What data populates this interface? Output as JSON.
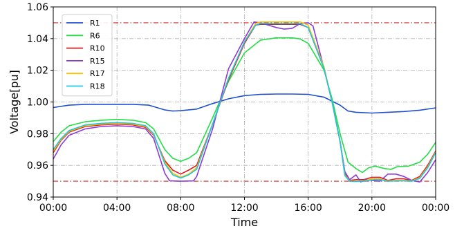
{
  "chart_data": {
    "type": "line",
    "xlabel": "Time",
    "ylabel": "Voltage[pu]",
    "x_ticks": [
      "00:00",
      "04:00",
      "08:00",
      "12:00",
      "16:00",
      "20:00",
      "00:00"
    ],
    "x_tick_hours": [
      0,
      4,
      8,
      12,
      16,
      20,
      24
    ],
    "xlim": [
      0,
      24
    ],
    "y_ticks": [
      "0.94",
      "0.96",
      "0.98",
      "1.00",
      "1.02",
      "1.04",
      "1.06"
    ],
    "ylim": [
      0.94,
      1.06
    ],
    "grid": true,
    "legend_position": "top-left",
    "limit_lines": [
      {
        "value": 1.05,
        "color": "#d62728"
      },
      {
        "value": 0.95,
        "color": "#d62728"
      }
    ],
    "series": [
      {
        "name": "R1",
        "color": "#1f4fd1",
        "points": [
          [
            0,
            0.9965
          ],
          [
            1,
            0.998
          ],
          [
            2,
            0.9985
          ],
          [
            3,
            0.9985
          ],
          [
            4,
            0.9985
          ],
          [
            5,
            0.9985
          ],
          [
            6,
            0.998
          ],
          [
            7,
            0.995
          ],
          [
            7.5,
            0.9943
          ],
          [
            8,
            0.9945
          ],
          [
            9,
            0.9955
          ],
          [
            10,
            0.999
          ],
          [
            11,
            1.002
          ],
          [
            12,
            1.004
          ],
          [
            13,
            1.0048
          ],
          [
            14,
            1.005
          ],
          [
            15,
            1.005
          ],
          [
            16,
            1.0048
          ],
          [
            17,
            1.003
          ],
          [
            18,
            0.998
          ],
          [
            18.5,
            0.9943
          ],
          [
            19,
            0.9935
          ],
          [
            20,
            0.993
          ],
          [
            21,
            0.9935
          ],
          [
            22,
            0.994
          ],
          [
            23,
            0.9948
          ],
          [
            24,
            0.9963
          ]
        ]
      },
      {
        "name": "R6",
        "color": "#22dd44",
        "points": [
          [
            0,
            0.975
          ],
          [
            0.5,
            0.981
          ],
          [
            1,
            0.985
          ],
          [
            2,
            0.9875
          ],
          [
            3,
            0.9885
          ],
          [
            4,
            0.989
          ],
          [
            5,
            0.9885
          ],
          [
            5.8,
            0.987
          ],
          [
            6.3,
            0.983
          ],
          [
            7,
            0.97
          ],
          [
            7.5,
            0.9645
          ],
          [
            8,
            0.9625
          ],
          [
            8.5,
            0.9645
          ],
          [
            9,
            0.968
          ],
          [
            10,
            0.99
          ],
          [
            11,
            1.013
          ],
          [
            12,
            1.031
          ],
          [
            13,
            1.039
          ],
          [
            14,
            1.0405
          ],
          [
            15,
            1.0405
          ],
          [
            15.5,
            1.0398
          ],
          [
            16,
            1.037
          ],
          [
            17,
            1.02
          ],
          [
            17.5,
            1.002
          ],
          [
            18,
            0.98
          ],
          [
            18.5,
            0.962
          ],
          [
            19,
            0.958
          ],
          [
            19.4,
            0.9555
          ],
          [
            19.8,
            0.9585
          ],
          [
            20.2,
            0.9595
          ],
          [
            20.8,
            0.958
          ],
          [
            21.2,
            0.9575
          ],
          [
            21.6,
            0.9592
          ],
          [
            22.3,
            0.9595
          ],
          [
            23,
            0.962
          ],
          [
            23.5,
            0.967
          ],
          [
            24,
            0.9745
          ]
        ]
      },
      {
        "name": "R10",
        "color": "#e31a1c",
        "points": [
          [
            0,
            0.968
          ],
          [
            0.5,
            0.976
          ],
          [
            1,
            0.981
          ],
          [
            2,
            0.9845
          ],
          [
            3,
            0.9855
          ],
          [
            4,
            0.986
          ],
          [
            5,
            0.9855
          ],
          [
            5.8,
            0.984
          ],
          [
            6.3,
            0.979
          ],
          [
            7,
            0.963
          ],
          [
            7.5,
            0.957
          ],
          [
            8,
            0.9545
          ],
          [
            8.5,
            0.957
          ],
          [
            9,
            0.96
          ],
          [
            10,
            0.986
          ],
          [
            11,
            1.014
          ],
          [
            12,
            1.037
          ],
          [
            12.7,
            1.0485
          ],
          [
            13,
            1.049
          ],
          [
            14,
            1.049
          ],
          [
            15,
            1.049
          ],
          [
            15.5,
            1.049
          ],
          [
            16,
            1.047
          ],
          [
            17,
            1.021
          ],
          [
            17.5,
            1.0
          ],
          [
            18,
            0.975
          ],
          [
            18.3,
            0.955
          ],
          [
            18.6,
            0.9505
          ],
          [
            19,
            0.951
          ],
          [
            19.5,
            0.951
          ],
          [
            20,
            0.9525
          ],
          [
            20.5,
            0.9525
          ],
          [
            21,
            0.9505
          ],
          [
            21.5,
            0.9515
          ],
          [
            22,
            0.9515
          ],
          [
            22.5,
            0.9505
          ],
          [
            23,
            0.953
          ],
          [
            23.5,
            0.96
          ],
          [
            24,
            0.969
          ]
        ]
      },
      {
        "name": "R15",
        "color": "#8b3ad6",
        "points": [
          [
            0,
            0.964
          ],
          [
            0.5,
            0.973
          ],
          [
            1,
            0.979
          ],
          [
            2,
            0.983
          ],
          [
            3,
            0.9845
          ],
          [
            4,
            0.985
          ],
          [
            5,
            0.9845
          ],
          [
            5.8,
            0.983
          ],
          [
            6.3,
            0.977
          ],
          [
            7,
            0.955
          ],
          [
            7.3,
            0.9503
          ],
          [
            8,
            0.95
          ],
          [
            8.8,
            0.9502
          ],
          [
            9,
            0.953
          ],
          [
            10,
            0.983
          ],
          [
            11,
            1.021
          ],
          [
            12,
            1.04
          ],
          [
            12.6,
            1.0505
          ],
          [
            13,
            1.05
          ],
          [
            13.5,
            1.0485
          ],
          [
            14,
            1.047
          ],
          [
            14.5,
            1.046
          ],
          [
            15,
            1.0465
          ],
          [
            15.5,
            1.0495
          ],
          [
            16,
            1.05
          ],
          [
            16.3,
            1.048
          ],
          [
            17,
            1.021
          ],
          [
            17.5,
            1.0
          ],
          [
            18,
            0.975
          ],
          [
            18.3,
            0.956
          ],
          [
            18.6,
            0.951
          ],
          [
            19,
            0.954
          ],
          [
            19.3,
            0.9495
          ],
          [
            19.6,
            0.951
          ],
          [
            20,
            0.9505
          ],
          [
            20.5,
            0.95
          ],
          [
            21,
            0.9545
          ],
          [
            21.5,
            0.9545
          ],
          [
            22,
            0.953
          ],
          [
            22.5,
            0.9505
          ],
          [
            23,
            0.9495
          ],
          [
            23.5,
            0.9555
          ],
          [
            24,
            0.9635
          ]
        ]
      },
      {
        "name": "R17",
        "color": "#ffbf00",
        "points": [
          [
            0,
            0.969
          ],
          [
            0.5,
            0.9765
          ],
          [
            1,
            0.9815
          ],
          [
            2,
            0.985
          ],
          [
            3,
            0.986
          ],
          [
            4,
            0.9865
          ],
          [
            5,
            0.986
          ],
          [
            5.8,
            0.9845
          ],
          [
            6.3,
            0.9795
          ],
          [
            7,
            0.962
          ],
          [
            7.5,
            0.955
          ],
          [
            8,
            0.9525
          ],
          [
            8.5,
            0.9545
          ],
          [
            9,
            0.9585
          ],
          [
            10,
            0.986
          ],
          [
            11,
            1.015
          ],
          [
            12,
            1.038
          ],
          [
            12.7,
            1.0495
          ],
          [
            13,
            1.0505
          ],
          [
            14,
            1.0505
          ],
          [
            15,
            1.0505
          ],
          [
            15.5,
            1.0505
          ],
          [
            16,
            1.0485
          ],
          [
            17,
            1.022
          ],
          [
            17.5,
            1.0
          ],
          [
            18,
            0.975
          ],
          [
            18.3,
            0.954
          ],
          [
            18.6,
            0.9502
          ],
          [
            19,
            0.95
          ],
          [
            19.5,
            0.9502
          ],
          [
            20,
            0.9515
          ],
          [
            20.5,
            0.9515
          ],
          [
            21,
            0.9502
          ],
          [
            21.5,
            0.9505
          ],
          [
            22,
            0.9505
          ],
          [
            22.5,
            0.9502
          ],
          [
            23,
            0.9522
          ],
          [
            23.5,
            0.959
          ],
          [
            24,
            0.9685
          ]
        ]
      },
      {
        "name": "R18",
        "color": "#17c7e6",
        "points": [
          [
            0,
            0.97
          ],
          [
            0.5,
            0.977
          ],
          [
            1,
            0.982
          ],
          [
            2,
            0.9855
          ],
          [
            3,
            0.9865
          ],
          [
            4,
            0.987
          ],
          [
            5,
            0.9865
          ],
          [
            5.8,
            0.985
          ],
          [
            6.3,
            0.98
          ],
          [
            7,
            0.961
          ],
          [
            7.5,
            0.954
          ],
          [
            8,
            0.952
          ],
          [
            8.5,
            0.954
          ],
          [
            9,
            0.9575
          ],
          [
            10,
            0.986
          ],
          [
            11,
            1.015
          ],
          [
            12,
            1.038
          ],
          [
            12.7,
            1.0485
          ],
          [
            13,
            1.0495
          ],
          [
            14,
            1.0495
          ],
          [
            15,
            1.0495
          ],
          [
            15.5,
            1.0495
          ],
          [
            16,
            1.047
          ],
          [
            17,
            1.021
          ],
          [
            17.5,
            1.0
          ],
          [
            18,
            0.975
          ],
          [
            18.3,
            0.9535
          ],
          [
            18.6,
            0.95
          ],
          [
            19,
            0.9498
          ],
          [
            19.5,
            0.95
          ],
          [
            20,
            0.9508
          ],
          [
            20.5,
            0.951
          ],
          [
            21,
            0.95
          ],
          [
            21.5,
            0.9502
          ],
          [
            22,
            0.9502
          ],
          [
            22.5,
            0.95
          ],
          [
            23,
            0.9518
          ],
          [
            23.5,
            0.9585
          ],
          [
            24,
            0.968
          ]
        ]
      }
    ]
  }
}
